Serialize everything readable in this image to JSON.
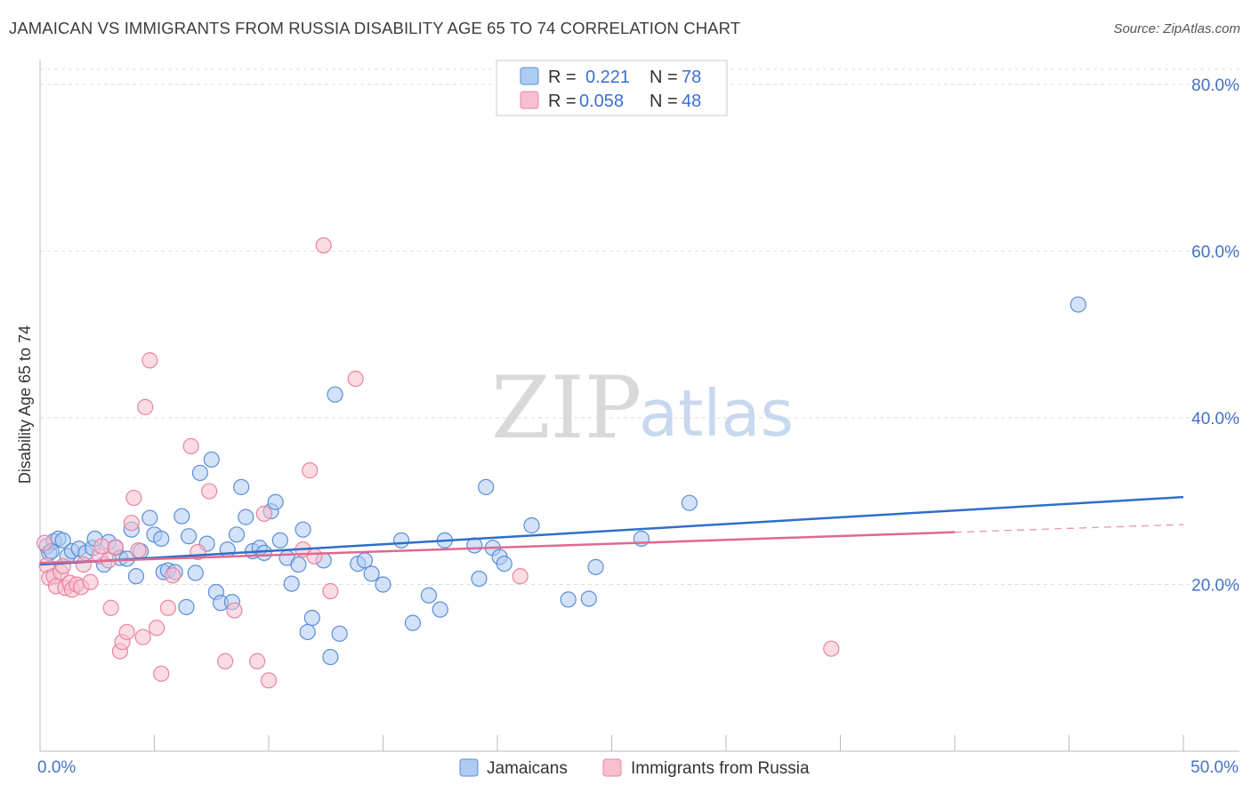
{
  "title": "JAMAICAN VS IMMIGRANTS FROM RUSSIA DISABILITY AGE 65 TO 74 CORRELATION CHART",
  "source": "Source: ZipAtlas.com",
  "watermark": {
    "zip": "ZIP",
    "atlas": "atlas"
  },
  "colors": {
    "blue_fill": "#aecbf2",
    "blue_stroke": "#5b8fd6",
    "blue_line": "#2f6ec9",
    "pink_fill": "#f7bfd0",
    "pink_stroke": "#e8849f",
    "pink_line": "#e0688f",
    "grid": "#dddddd",
    "tick_text": "#4472c4"
  },
  "legend": {
    "rows": [
      {
        "r_label": "R =",
        "r_value": "0.221",
        "n_label": "N =",
        "n_value": "78"
      },
      {
        "r_label": "R =",
        "r_value": "0.058",
        "n_label": "N =",
        "n_value": "48"
      }
    ]
  },
  "chart_data": {
    "type": "scatter",
    "title": "JAMAICAN VS IMMIGRANTS FROM RUSSIA DISABILITY AGE 65 TO 74 CORRELATION CHART",
    "xlabel": "",
    "ylabel": "Disability Age 65 to 74",
    "xlim": [
      0,
      50
    ],
    "ylim": [
      0,
      83
    ],
    "x_tick_labels": [
      "0.0%",
      "50.0%"
    ],
    "y_ticks": [
      20,
      40,
      60,
      80
    ],
    "y_tick_labels": [
      "20.0%",
      "40.0%",
      "60.0%",
      "80.0%"
    ],
    "legend_position": "top-center",
    "series": [
      {
        "name": "Jamaicans",
        "r": 0.221,
        "n": 78,
        "trend": {
          "x": [
            0,
            50
          ],
          "y": [
            22.4,
            30.5
          ],
          "dashed_from": null
        },
        "points": [
          [
            0.3,
            24.6
          ],
          [
            0.4,
            23.8
          ],
          [
            0.6,
            25.2
          ],
          [
            0.8,
            25.5
          ],
          [
            1.0,
            25.3
          ],
          [
            1.2,
            23.4
          ],
          [
            1.4,
            24.0
          ],
          [
            1.7,
            24.3
          ],
          [
            2.0,
            23.8
          ],
          [
            2.3,
            24.4
          ],
          [
            2.4,
            25.5
          ],
          [
            2.8,
            22.4
          ],
          [
            3.0,
            25.1
          ],
          [
            3.3,
            24.4
          ],
          [
            3.5,
            23.2
          ],
          [
            3.8,
            23.1
          ],
          [
            4.0,
            26.6
          ],
          [
            4.2,
            21.0
          ],
          [
            4.4,
            24.0
          ],
          [
            4.8,
            28.0
          ],
          [
            5.0,
            26.0
          ],
          [
            5.3,
            25.5
          ],
          [
            5.4,
            21.5
          ],
          [
            5.6,
            21.7
          ],
          [
            5.9,
            21.5
          ],
          [
            6.2,
            28.2
          ],
          [
            6.4,
            17.3
          ],
          [
            6.5,
            25.8
          ],
          [
            6.8,
            21.4
          ],
          [
            7.0,
            33.4
          ],
          [
            7.3,
            24.9
          ],
          [
            7.5,
            35.0
          ],
          [
            7.7,
            19.1
          ],
          [
            7.9,
            17.8
          ],
          [
            8.2,
            24.2
          ],
          [
            8.4,
            17.9
          ],
          [
            8.6,
            26.0
          ],
          [
            8.8,
            31.7
          ],
          [
            9.0,
            28.1
          ],
          [
            9.3,
            24.0
          ],
          [
            9.6,
            24.4
          ],
          [
            9.8,
            23.8
          ],
          [
            10.1,
            28.8
          ],
          [
            10.3,
            29.9
          ],
          [
            10.5,
            25.3
          ],
          [
            10.8,
            23.2
          ],
          [
            11.0,
            20.1
          ],
          [
            11.3,
            22.4
          ],
          [
            11.5,
            26.6
          ],
          [
            11.7,
            14.3
          ],
          [
            11.9,
            16.0
          ],
          [
            12.4,
            22.9
          ],
          [
            12.7,
            11.3
          ],
          [
            12.9,
            42.8
          ],
          [
            13.1,
            14.1
          ],
          [
            13.9,
            22.5
          ],
          [
            14.2,
            22.9
          ],
          [
            14.5,
            21.3
          ],
          [
            15.0,
            20.0
          ],
          [
            15.8,
            25.3
          ],
          [
            16.3,
            15.4
          ],
          [
            17.0,
            18.7
          ],
          [
            17.5,
            17.0
          ],
          [
            17.7,
            25.3
          ],
          [
            19.0,
            24.7
          ],
          [
            19.2,
            20.7
          ],
          [
            19.5,
            31.7
          ],
          [
            19.8,
            24.4
          ],
          [
            20.1,
            23.3
          ],
          [
            20.3,
            22.5
          ],
          [
            21.5,
            27.1
          ],
          [
            23.1,
            18.2
          ],
          [
            24.0,
            18.3
          ],
          [
            24.3,
            22.1
          ],
          [
            26.3,
            25.5
          ],
          [
            28.4,
            29.8
          ],
          [
            45.4,
            53.6
          ],
          [
            0.5,
            24.0
          ]
        ]
      },
      {
        "name": "Immigrants from Russia",
        "r": 0.058,
        "n": 48,
        "trend": {
          "x": [
            0,
            50
          ],
          "y": [
            22.6,
            27.2
          ],
          "dashed_from": 40
        },
        "points": [
          [
            0.2,
            25.0
          ],
          [
            0.3,
            22.3
          ],
          [
            0.4,
            20.8
          ],
          [
            0.6,
            21.0
          ],
          [
            0.7,
            19.8
          ],
          [
            0.9,
            21.5
          ],
          [
            1.0,
            22.2
          ],
          [
            1.1,
            19.6
          ],
          [
            1.3,
            20.2
          ],
          [
            1.4,
            19.4
          ],
          [
            1.6,
            20.0
          ],
          [
            1.8,
            19.7
          ],
          [
            1.9,
            22.4
          ],
          [
            2.2,
            20.3
          ],
          [
            2.6,
            23.4
          ],
          [
            2.7,
            24.6
          ],
          [
            3.0,
            22.9
          ],
          [
            3.1,
            17.2
          ],
          [
            3.3,
            24.5
          ],
          [
            3.5,
            12.0
          ],
          [
            3.6,
            13.1
          ],
          [
            3.8,
            14.3
          ],
          [
            4.0,
            27.4
          ],
          [
            4.1,
            30.4
          ],
          [
            4.3,
            24.1
          ],
          [
            4.5,
            13.7
          ],
          [
            4.6,
            41.3
          ],
          [
            4.8,
            46.9
          ],
          [
            5.1,
            14.8
          ],
          [
            5.3,
            9.3
          ],
          [
            5.6,
            17.2
          ],
          [
            5.8,
            21.1
          ],
          [
            6.6,
            36.6
          ],
          [
            6.9,
            23.9
          ],
          [
            7.4,
            31.2
          ],
          [
            8.1,
            10.8
          ],
          [
            8.5,
            16.9
          ],
          [
            9.5,
            10.8
          ],
          [
            9.8,
            28.5
          ],
          [
            10.0,
            8.5
          ],
          [
            11.5,
            24.2
          ],
          [
            11.8,
            33.7
          ],
          [
            12.0,
            23.4
          ],
          [
            12.4,
            60.7
          ],
          [
            12.7,
            19.2
          ],
          [
            13.8,
            44.7
          ],
          [
            21.0,
            21.0
          ],
          [
            34.6,
            12.3
          ]
        ]
      }
    ]
  },
  "axis": {
    "y_title": "Disability Age 65 to 74"
  },
  "bottom_legend": {
    "items": [
      {
        "label": "Jamaicans"
      },
      {
        "label": "Immigrants from Russia"
      }
    ]
  }
}
